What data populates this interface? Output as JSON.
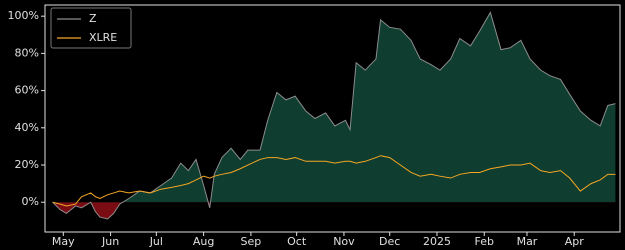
{
  "chart_data": {
    "type": "line",
    "x": [
      0,
      5,
      9,
      15,
      19,
      25,
      28,
      31,
      36,
      40,
      44,
      50,
      57,
      64,
      71,
      78,
      84,
      89,
      94,
      99,
      103,
      106,
      111,
      117,
      123,
      128,
      136,
      141,
      147,
      153,
      159,
      166,
      172,
      179,
      185,
      192,
      195,
      199,
      205,
      212,
      215,
      221,
      228,
      235,
      241,
      248,
      254,
      261,
      267,
      274,
      280,
      287,
      294,
      300,
      307,
      313,
      320,
      326,
      333,
      339,
      346,
      353,
      359,
      364,
      369
    ],
    "series": [
      {
        "name": "Z",
        "color": "#8c8c8c",
        "fill_colors": {
          "positive": "#0f3d30",
          "negative": "#7a0d14"
        },
        "values": [
          0,
          -4,
          -6,
          -2,
          -3,
          0,
          -5,
          -8,
          -9,
          -6,
          -1,
          2,
          6,
          5,
          9,
          13,
          21,
          17,
          23,
          9,
          -3,
          15,
          24,
          29,
          23,
          28,
          28,
          44,
          59,
          55,
          57,
          49,
          45,
          48,
          41,
          44,
          39,
          75,
          71,
          77,
          98,
          94,
          93,
          87,
          77,
          74,
          71,
          77,
          88,
          84,
          92,
          102,
          82,
          83,
          87,
          77,
          71,
          68,
          66,
          58,
          49,
          44,
          41,
          52,
          53
        ]
      },
      {
        "name": "XLRE",
        "color": "#f5a623",
        "values": [
          0,
          -1,
          -2,
          -1,
          3,
          5,
          3,
          2,
          4,
          5,
          6,
          5,
          6,
          5,
          7,
          8,
          9,
          10,
          12,
          14,
          13,
          14,
          15,
          16,
          18,
          20,
          23,
          24,
          24,
          23,
          24,
          22,
          22,
          22,
          21,
          22,
          22,
          21,
          22,
          24,
          25,
          24,
          20,
          16,
          14,
          15,
          14,
          13,
          15,
          16,
          16,
          18,
          19,
          20,
          20,
          21,
          17,
          16,
          17,
          13,
          6,
          10,
          12,
          15,
          15
        ]
      }
    ],
    "xlim": [
      -5,
      372
    ],
    "xticks": [
      {
        "value": 7,
        "label": "May"
      },
      {
        "value": 38,
        "label": "Jun"
      },
      {
        "value": 68,
        "label": "Jul"
      },
      {
        "value": 99,
        "label": "Aug"
      },
      {
        "value": 130,
        "label": "Sep"
      },
      {
        "value": 160,
        "label": "Oct"
      },
      {
        "value": 191,
        "label": "Nov"
      },
      {
        "value": 221,
        "label": "Dec"
      },
      {
        "value": 252,
        "label": "2025"
      },
      {
        "value": 283,
        "label": "Feb"
      },
      {
        "value": 311,
        "label": "Mar"
      },
      {
        "value": 342,
        "label": "Apr"
      }
    ],
    "ylim": [
      -16,
      106
    ],
    "yticks": [
      {
        "value": 0,
        "label": "0%"
      },
      {
        "value": 20,
        "label": "20%"
      },
      {
        "value": 40,
        "label": "40%"
      },
      {
        "value": 60,
        "label": "60%"
      },
      {
        "value": 80,
        "label": "80%"
      },
      {
        "value": 100,
        "label": "100%"
      }
    ],
    "legend": "upper left"
  }
}
